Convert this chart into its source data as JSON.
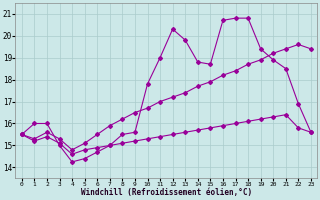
{
  "xlabel": "Windchill (Refroidissement éolien,°C)",
  "bg_color": "#cce8e8",
  "grid_color": "#aacccc",
  "line_color": "#990099",
  "xlim": [
    -0.5,
    23.5
  ],
  "ylim": [
    13.5,
    21.5
  ],
  "yticks": [
    14,
    15,
    16,
    17,
    18,
    19,
    20,
    21
  ],
  "xticks": [
    0,
    1,
    2,
    3,
    4,
    5,
    6,
    7,
    8,
    9,
    10,
    11,
    12,
    13,
    14,
    15,
    16,
    17,
    18,
    19,
    20,
    21,
    22,
    23
  ],
  "line1_x": [
    0,
    1,
    2,
    3,
    4,
    5,
    6,
    7,
    8,
    9,
    10,
    11,
    12,
    13,
    14,
    15,
    16,
    17,
    18,
    19,
    20,
    21,
    22,
    23
  ],
  "line1_y": [
    15.5,
    16.0,
    16.0,
    15.0,
    14.25,
    14.4,
    14.7,
    15.0,
    15.5,
    15.6,
    17.8,
    19.0,
    20.3,
    19.8,
    18.8,
    18.7,
    20.7,
    20.8,
    20.8,
    19.4,
    18.9,
    18.5,
    16.9,
    15.6
  ],
  "line2_x": [
    0,
    1,
    2,
    3,
    4,
    5,
    6,
    7,
    8,
    9,
    10,
    11,
    12,
    13,
    14,
    15,
    16,
    17,
    18,
    19,
    20,
    21,
    22,
    23
  ],
  "line2_y": [
    15.5,
    15.3,
    15.6,
    15.3,
    14.8,
    15.1,
    15.5,
    15.9,
    16.2,
    16.5,
    16.7,
    17.0,
    17.2,
    17.4,
    17.7,
    17.9,
    18.2,
    18.4,
    18.7,
    18.9,
    19.2,
    19.4,
    19.6,
    19.4
  ],
  "line3_x": [
    0,
    1,
    2,
    3,
    4,
    5,
    6,
    7,
    8,
    9,
    10,
    11,
    12,
    13,
    14,
    15,
    16,
    17,
    18,
    19,
    20,
    21,
    22,
    23
  ],
  "line3_y": [
    15.5,
    15.2,
    15.4,
    15.1,
    14.6,
    14.8,
    14.9,
    15.0,
    15.1,
    15.2,
    15.3,
    15.4,
    15.5,
    15.6,
    15.7,
    15.8,
    15.9,
    16.0,
    16.1,
    16.2,
    16.3,
    16.4,
    15.8,
    15.6
  ]
}
